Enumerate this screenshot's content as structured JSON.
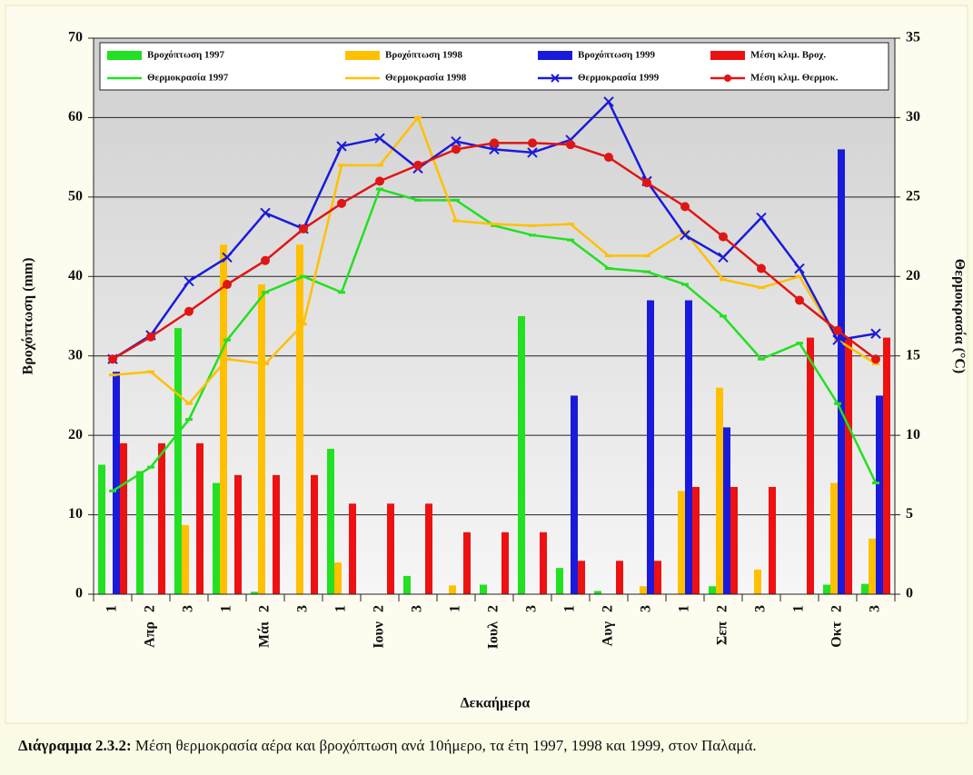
{
  "chart_data": {
    "type": "bar",
    "categories": [
      "1",
      "2",
      "3",
      "1",
      "2",
      "3",
      "1",
      "2",
      "3",
      "1",
      "2",
      "3",
      "1",
      "2",
      "3",
      "1",
      "2",
      "3",
      "1",
      "2",
      "3"
    ],
    "category_groups": [
      "Απρ",
      "Μάι",
      "Ιουν",
      "Ιουλ",
      "Αυγ",
      "Σεπ",
      "Οκτ"
    ],
    "xlabel": "Δεκαήμερα",
    "ylabel": "Βροχόπτωση (mm)",
    "y2label": "Θερμοκρασία (°C)",
    "ylim": [
      0,
      70
    ],
    "yticks": [
      0,
      10,
      20,
      30,
      40,
      50,
      60,
      70
    ],
    "y2lim": [
      0,
      35
    ],
    "y2ticks": [
      0,
      5,
      10,
      15,
      20,
      25,
      30,
      35
    ],
    "grid": true,
    "legend": "top",
    "caption_label": "Διάγραμμα 2.3.2:",
    "caption": "Μέση θερμοκρασία αέρα και βροχόπτωση ανά 10ήμερο, τα έτη 1997, 1998 και 1999, στον Παλαμά.",
    "series": [
      {
        "name": "Βροχόπτωση 1997",
        "type": "bar",
        "color": "#22e022",
        "values": [
          16.3,
          15.5,
          33.5,
          14,
          0.3,
          0,
          18.3,
          0,
          2.3,
          0,
          1.2,
          35,
          3.3,
          0.4,
          0,
          0,
          1,
          0,
          0,
          1.2,
          1.3
        ]
      },
      {
        "name": "Βροχόπτωση 1998",
        "type": "bar",
        "color": "#ffc000",
        "values": [
          0,
          0,
          8.7,
          44,
          39,
          44,
          4,
          0,
          0,
          1.1,
          0,
          0,
          0,
          0,
          1,
          13,
          26,
          3.1,
          0,
          14,
          7
        ]
      },
      {
        "name": "Βροχόπτωση 1999",
        "type": "bar",
        "color": "#1a1adc",
        "values": [
          28,
          0,
          0,
          0,
          0,
          0,
          0,
          0,
          0,
          0,
          0,
          0,
          25,
          0,
          37,
          37,
          21,
          0,
          0,
          56,
          25
        ]
      },
      {
        "name": "Μέση κλιμ. Βροχ.",
        "type": "bar",
        "color": "#ee1111",
        "values": [
          19,
          19,
          19,
          15,
          15,
          15,
          11.4,
          11.4,
          11.4,
          7.8,
          7.8,
          7.8,
          4.2,
          4.2,
          4.2,
          13.5,
          13.5,
          13.5,
          32.3,
          32.3,
          32.3
        ]
      },
      {
        "name": "Θερμοκρασία 1997",
        "type": "line",
        "axis": "y2",
        "marker": "dash",
        "color": "#22e022",
        "values": [
          6.5,
          8,
          11,
          16,
          19,
          20,
          19,
          25.5,
          24.8,
          24.8,
          23.2,
          22.6,
          22.3,
          20.5,
          20.3,
          19.5,
          17.5,
          14.8,
          15.8,
          12,
          7
        ]
      },
      {
        "name": "Θερμοκρασία 1998",
        "type": "line",
        "axis": "y2",
        "marker": "dash",
        "color": "#ffc000",
        "values": [
          13.8,
          14,
          12,
          14.8,
          14.5,
          17,
          27,
          27,
          30,
          23.5,
          23.3,
          23.2,
          23.3,
          21.3,
          21.3,
          22.8,
          19.8,
          19.3,
          20,
          16,
          14.5
        ]
      },
      {
        "name": "Θερμοκρασία 1999",
        "type": "line",
        "axis": "y2",
        "marker": "x",
        "color": "#1a1adc",
        "values": [
          14.8,
          16.3,
          19.7,
          21.2,
          24,
          23,
          28.2,
          28.7,
          26.8,
          28.5,
          28,
          27.8,
          28.6,
          31,
          26,
          22.6,
          21.2,
          23.7,
          20.5,
          16,
          16.4
        ]
      },
      {
        "name": "Μέση κλιμ. Θερμοκ.",
        "type": "line",
        "axis": "y2",
        "marker": "circle",
        "color": "#e01515",
        "values": [
          14.8,
          16.2,
          17.8,
          19.5,
          21,
          23,
          24.6,
          26,
          27,
          28,
          28.4,
          28.4,
          28.3,
          27.5,
          25.9,
          24.4,
          22.5,
          20.5,
          18.5,
          16.6,
          14.8
        ]
      }
    ]
  }
}
